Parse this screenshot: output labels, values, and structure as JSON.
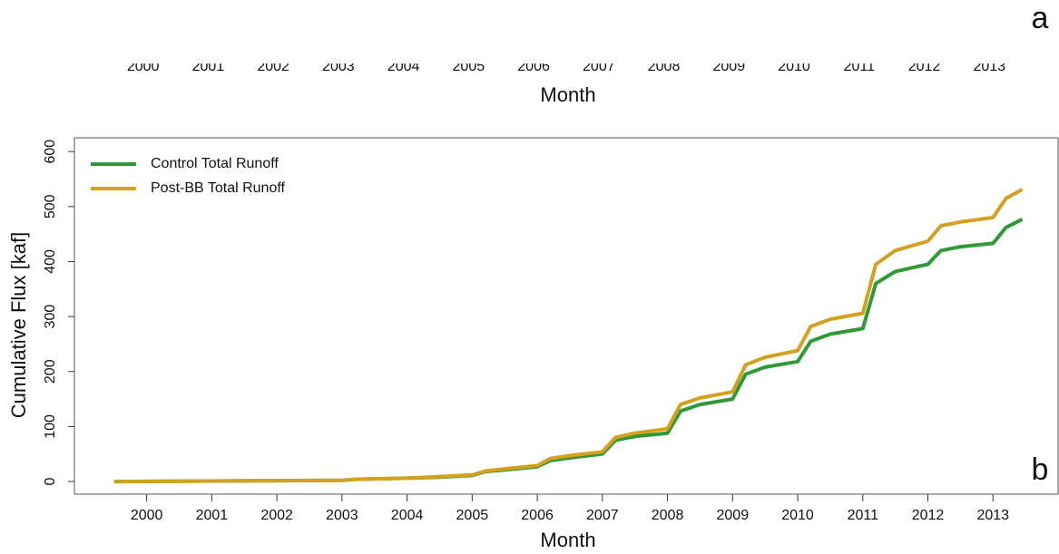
{
  "chart_data": [
    {
      "type": "line",
      "panel": "a",
      "xlabel": "Month",
      "xlim": [
        1998.89,
        2014.0
      ],
      "xticks": [
        2000,
        2001,
        2002,
        2003,
        2004,
        2005,
        2006,
        2007,
        2008,
        2009,
        2010,
        2011,
        2012,
        2013
      ]
    },
    {
      "type": "line",
      "panel": "b",
      "xlabel": "Month",
      "ylabel": "Cumulative Flux [kaf]",
      "xlim": [
        1998.89,
        2014.0
      ],
      "ylim": [
        -23,
        625
      ],
      "xticks": [
        2000,
        2001,
        2002,
        2003,
        2004,
        2005,
        2006,
        2007,
        2008,
        2009,
        2010,
        2011,
        2012,
        2013
      ],
      "yticks": [
        0,
        100,
        200,
        300,
        400,
        500,
        600
      ],
      "legend": "upper left",
      "x": [
        1999.5,
        2003.0,
        2003.2,
        2004.0,
        2004.5,
        2005.0,
        2005.2,
        2005.5,
        2006.0,
        2006.2,
        2006.5,
        2007.0,
        2007.2,
        2007.5,
        2008.0,
        2008.2,
        2008.5,
        2009.0,
        2009.2,
        2009.5,
        2010.0,
        2010.2,
        2010.5,
        2011.0,
        2011.2,
        2011.5,
        2012.0,
        2012.2,
        2012.5,
        2013.0,
        2013.2,
        2013.45
      ],
      "series": [
        {
          "name": "Control Total Runoff",
          "color": "#2e9a35",
          "values": [
            0,
            2,
            4,
            6,
            8,
            11,
            18,
            21,
            27,
            38,
            43,
            50,
            75,
            82,
            88,
            128,
            140,
            150,
            195,
            208,
            218,
            255,
            268,
            278,
            360,
            382,
            395,
            420,
            427,
            433,
            462,
            477
          ]
        },
        {
          "name": "Post-BB Total Runoff",
          "color": "#d4a020",
          "values": [
            0,
            2,
            4,
            6,
            9,
            12,
            19,
            23,
            29,
            42,
            47,
            54,
            80,
            88,
            96,
            140,
            152,
            163,
            212,
            226,
            238,
            282,
            295,
            306,
            395,
            420,
            437,
            465,
            472,
            480,
            515,
            531
          ]
        }
      ]
    }
  ]
}
